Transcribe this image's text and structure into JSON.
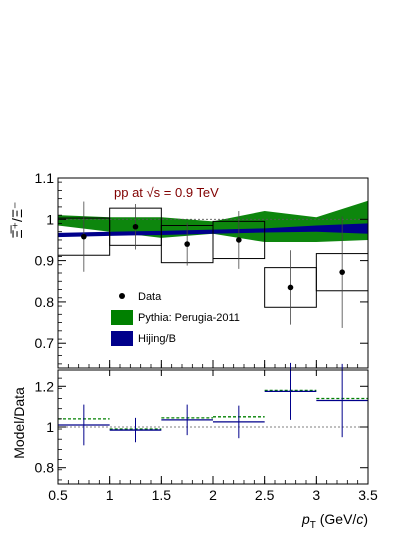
{
  "chart_data": [
    {
      "type": "scatter",
      "annotation": "pp at √s = 0.9 TeV",
      "ylabel": "Ξ̅⁺/Ξ⁻",
      "xlim": [
        0.5,
        3.5
      ],
      "ylim": [
        0.64,
        1.1
      ],
      "yticks": [
        "0.7",
        "0.8",
        "0.9",
        "1",
        "1.1"
      ],
      "reference_line": 1,
      "legend_position": "center-left",
      "series": [
        {
          "name": "Data",
          "color": "#000000",
          "x": [
            0.75,
            1.25,
            1.75,
            2.25,
            2.75,
            3.25
          ],
          "y": [
            0.958,
            0.982,
            0.94,
            0.95,
            0.835,
            0.872
          ],
          "x_halfwidth": 0.25,
          "stat_error": [
            0.085,
            0.055,
            0.052,
            0.07,
            0.09,
            0.135
          ],
          "syst_error": [
            0.045,
            0.045,
            0.045,
            0.045,
            0.048,
            0.045
          ]
        },
        {
          "name": "Pythia: Perugia-2011",
          "color": "#008000",
          "style": "band",
          "x": [
            0.5,
            1.0,
            1.5,
            2.0,
            2.5,
            3.0,
            3.5
          ],
          "lower": [
            0.985,
            0.97,
            0.955,
            0.965,
            0.945,
            0.945,
            0.95
          ],
          "upper": [
            1.01,
            1.005,
            1.005,
            0.995,
            1.02,
            1.005,
            1.045
          ]
        },
        {
          "name": "Hijing/B",
          "color": "#00008B",
          "style": "band",
          "x": [
            0.5,
            1.0,
            1.5,
            2.0,
            2.5,
            3.0,
            3.5
          ],
          "lower": [
            0.957,
            0.96,
            0.962,
            0.965,
            0.968,
            0.97,
            0.965
          ],
          "upper": [
            0.967,
            0.97,
            0.972,
            0.975,
            0.978,
            0.985,
            0.99
          ]
        }
      ]
    },
    {
      "type": "scatter",
      "ylabel": "Model/Data",
      "xlabel": "p_T (GeV/c)",
      "xlim": [
        0.5,
        3.5
      ],
      "ylim": [
        0.72,
        1.28
      ],
      "yticks": [
        "0.8",
        "1",
        "1.2"
      ],
      "xticks": [
        "0.5",
        "1",
        "1.5",
        "2",
        "2.5",
        "3",
        "3.5"
      ],
      "reference_line": 1,
      "series": [
        {
          "name": "Pythia: Perugia-2011",
          "color": "#008000",
          "style": "dashed",
          "x": [
            0.75,
            1.25,
            1.75,
            2.25,
            2.75,
            3.25
          ],
          "y": [
            1.04,
            0.99,
            1.045,
            1.05,
            1.18,
            1.14
          ]
        },
        {
          "name": "Hijing/B",
          "color": "#00008B",
          "x": [
            0.75,
            1.25,
            1.75,
            2.25,
            2.75,
            3.25
          ],
          "y": [
            1.01,
            0.985,
            1.035,
            1.025,
            1.175,
            1.13
          ],
          "error": [
            0.1,
            0.06,
            0.075,
            0.08,
            0.14,
            0.18
          ]
        }
      ]
    }
  ]
}
